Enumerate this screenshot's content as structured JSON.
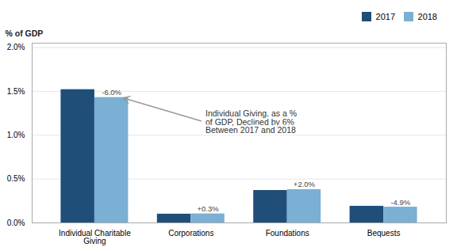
{
  "chart_data": {
    "type": "bar",
    "categories": [
      "Individual Charitable\nGiving",
      "Corporations",
      "Foundations",
      "Bequests"
    ],
    "series": [
      {
        "name": "2017",
        "color": "#1F4E79",
        "values": [
          1.52,
          0.1,
          0.37,
          0.19
        ]
      },
      {
        "name": "2018",
        "color": "#7BAFD4",
        "values": [
          1.43,
          0.103,
          0.38,
          0.18
        ],
        "change_labels": [
          "-6.0%",
          "+0.3%",
          "+2.0%",
          "-4.9%"
        ]
      }
    ],
    "ylabel": "% of GDP",
    "ylim": [
      0,
      2.05
    ],
    "yticks": [
      {
        "value": 0.0,
        "label": "0.0%"
      },
      {
        "value": 0.5,
        "label": "0.5%"
      },
      {
        "value": 1.0,
        "label": "1.0%"
      },
      {
        "value": 1.5,
        "label": "1.5%"
      },
      {
        "value": 2.0,
        "label": "2.0%"
      }
    ],
    "grid": true,
    "legend": "upper right",
    "annotations": [
      {
        "text": "Individual Giving, as a %\nof GDP, Declined by 6%\nBetween 2017 and 2018",
        "category": "Individual Charitable\nGiving",
        "series": "2018"
      }
    ]
  }
}
